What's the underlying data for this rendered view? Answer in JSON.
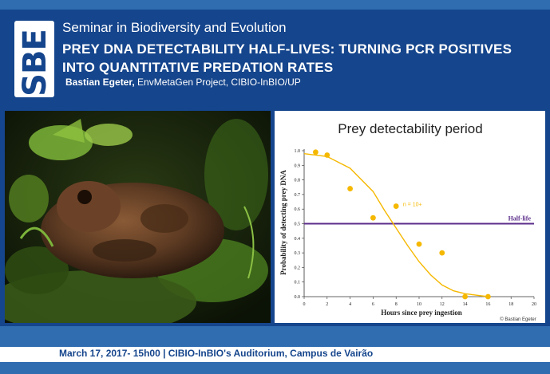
{
  "header": {
    "logo_text": "SBE",
    "series": "Seminar in Biodiversity and Evolution",
    "title": "PREY DNA DETECTABILITY HALF-LIVES: TURNING PCR POSITIVES INTO QUANTITATIVE PREDATION RATES",
    "speaker_name": "Bastian Egeter,",
    "speaker_affiliation": " EnvMetaGen Project, CIBIO-InBIO/UP"
  },
  "photo": {
    "alt": "frog-on-moss-photo"
  },
  "chart_data": {
    "type": "scatter",
    "title": "Prey detectability period",
    "xlabel": "Hours since prey ingestion",
    "ylabel": "Probability of detecting prey DNA",
    "xlim": [
      0,
      20
    ],
    "ylim": [
      0,
      1
    ],
    "xticks": [
      "0",
      "2",
      "4",
      "6",
      "8",
      "10",
      "12",
      "14",
      "16",
      "18",
      "20"
    ],
    "yticks": [
      "0.0",
      "0.1",
      "0.2",
      "0.3",
      "0.4",
      "0.5",
      "0.6",
      "0.7",
      "0.8",
      "0.9",
      "1.0"
    ],
    "points": [
      {
        "x": 1,
        "y": 0.99
      },
      {
        "x": 2,
        "y": 0.97
      },
      {
        "x": 4,
        "y": 0.74
      },
      {
        "x": 6,
        "y": 0.54
      },
      {
        "x": 8,
        "y": 0.62
      },
      {
        "x": 10,
        "y": 0.36
      },
      {
        "x": 12,
        "y": 0.3
      },
      {
        "x": 14,
        "y": 0.0
      },
      {
        "x": 16,
        "y": 0.0
      }
    ],
    "curve": [
      {
        "x": 0,
        "y": 0.98
      },
      {
        "x": 2,
        "y": 0.96
      },
      {
        "x": 4,
        "y": 0.88
      },
      {
        "x": 6,
        "y": 0.72
      },
      {
        "x": 7,
        "y": 0.59
      },
      {
        "x": 8,
        "y": 0.47
      },
      {
        "x": 9,
        "y": 0.35
      },
      {
        "x": 10,
        "y": 0.24
      },
      {
        "x": 11,
        "y": 0.15
      },
      {
        "x": 12,
        "y": 0.08
      },
      {
        "x": 13,
        "y": 0.04
      },
      {
        "x": 14,
        "y": 0.02
      },
      {
        "x": 15,
        "y": 0.01
      },
      {
        "x": 16,
        "y": 0.0
      }
    ],
    "half_life_y": 0.5,
    "half_life_label": "Half-life",
    "n_label": "n = 10+",
    "credit": "© Bastian Egeter",
    "colors": {
      "points": "#f5b800",
      "curve": "#f5b800",
      "half_life": "#5b2c8a"
    }
  },
  "footer": {
    "text": "March 17, 2017- 15h00 | CIBIO-InBIO's Auditorium, Campus de Vairão"
  }
}
